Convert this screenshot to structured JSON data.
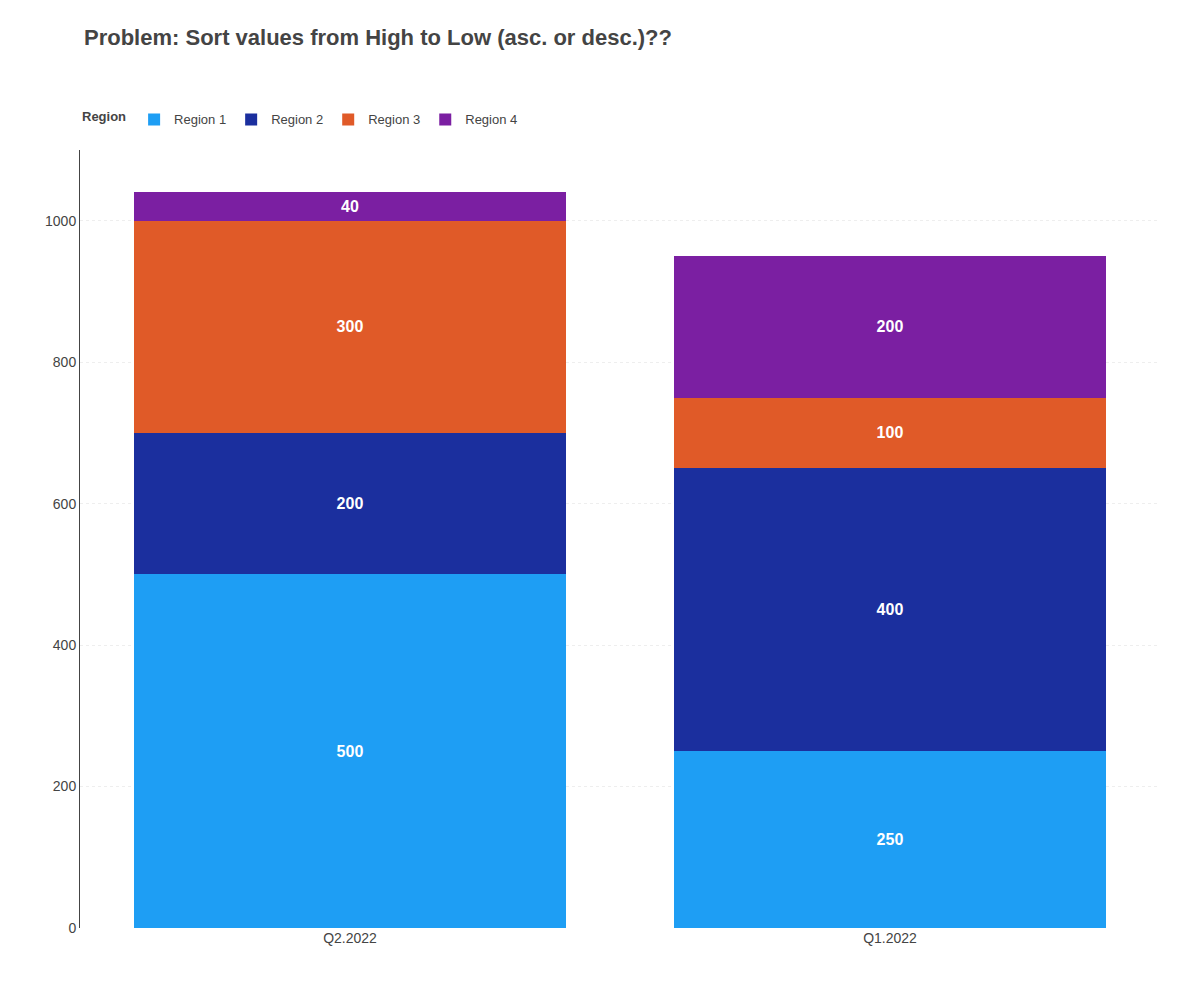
{
  "chart_data": {
    "type": "bar",
    "stacked": true,
    "title": "Problem: Sort values from High to Low (asc. or desc.)??",
    "legend_title": "Region",
    "legend": "upper left",
    "categories": [
      "Q2.2022",
      "Q1.2022"
    ],
    "series": [
      {
        "name": "Region 1",
        "color": "#1E9EF4",
        "values": [
          500,
          250
        ]
      },
      {
        "name": "Region 2",
        "color": "#1B2F9E",
        "values": [
          200,
          400
        ]
      },
      {
        "name": "Region 3",
        "color": "#E05A28",
        "values": [
          300,
          100
        ]
      },
      {
        "name": "Region 4",
        "color": "#7B1FA2",
        "values": [
          40,
          200
        ]
      }
    ],
    "ylim": [
      0,
      1100
    ],
    "yticks": [
      0,
      200,
      400,
      600,
      800,
      1000
    ],
    "grid": true,
    "data_labels": true
  }
}
